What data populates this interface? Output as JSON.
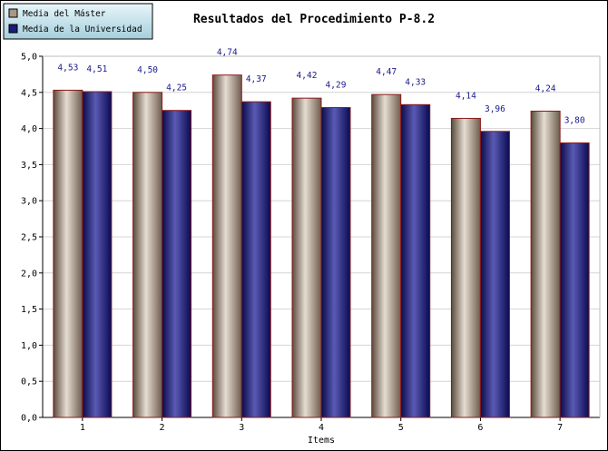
{
  "chart_data": {
    "type": "bar",
    "title": "Resultados del Procedimiento P-8.2",
    "xlabel": "Items",
    "ylabel": "",
    "categories": [
      "1",
      "2",
      "3",
      "4",
      "5",
      "6",
      "7"
    ],
    "series": [
      {
        "name": "Media del Máster",
        "values": [
          4.53,
          4.5,
          4.74,
          4.42,
          4.47,
          4.14,
          4.24
        ],
        "labels": [
          "4,53",
          "4,50",
          "4,74",
          "4,42",
          "4,47",
          "4,14",
          "4,24"
        ],
        "color": "#a89886"
      },
      {
        "name": "Media de la Universidad",
        "values": [
          4.51,
          4.25,
          4.37,
          4.29,
          4.33,
          3.96,
          3.8
        ],
        "labels": [
          "4,51",
          "4,25",
          "4,37",
          "4,29",
          "4,33",
          "3,96",
          "3,80"
        ],
        "color": "#1c1c7a"
      }
    ],
    "ylim": [
      0,
      5
    ],
    "yticks": [
      "0,0",
      "0,5",
      "1,0",
      "1,5",
      "2,0",
      "2,5",
      "3,0",
      "3,5",
      "4,0",
      "4,5",
      "5,0"
    ],
    "grid": true,
    "legend_position": "top-left"
  }
}
